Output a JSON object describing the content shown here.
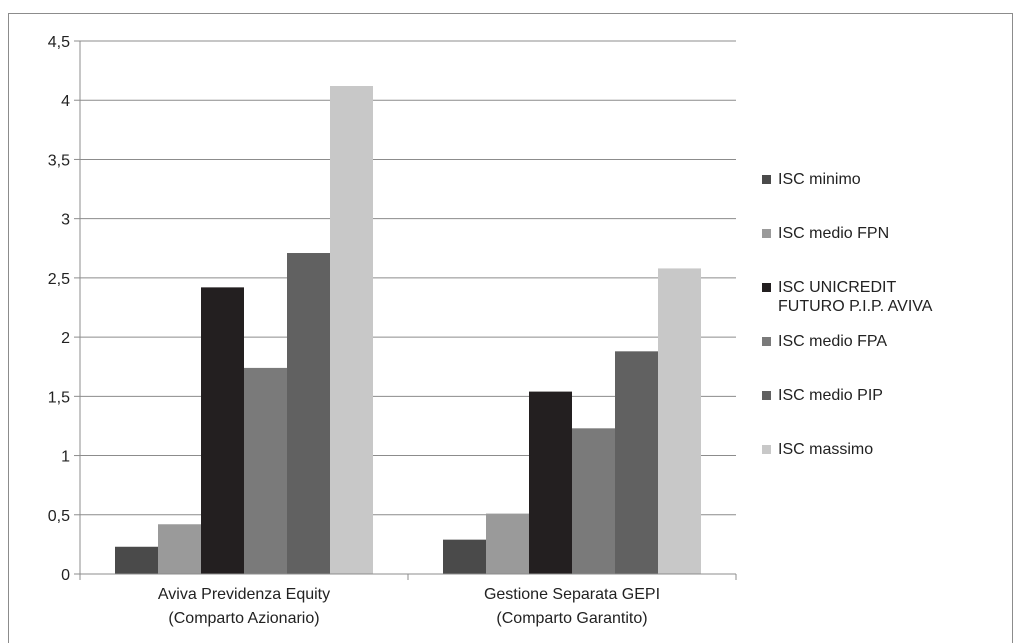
{
  "chart_data": {
    "type": "bar",
    "title": "",
    "xlabel": "",
    "ylabel": "",
    "ylim": [
      0,
      4.5
    ],
    "yticks": [
      "0",
      "0,5",
      "1",
      "1,5",
      "2",
      "2,5",
      "3",
      "3,5",
      "4",
      "4,5"
    ],
    "ytick_values": [
      0,
      0.5,
      1,
      1.5,
      2,
      2.5,
      3,
      3.5,
      4,
      4.5
    ],
    "grid": true,
    "legend_position": "right",
    "categories": [
      [
        "Aviva Previdenza Equity",
        "(Comparto Azionario)"
      ],
      [
        "Gestione Separata GEPI",
        "(Comparto Garantito)"
      ]
    ],
    "series": [
      {
        "name": "ISC minimo",
        "color": "#4a4a4a",
        "values": [
          0.23,
          0.29
        ]
      },
      {
        "name": "ISC medio FPN",
        "color": "#9a9a9a",
        "values": [
          0.42,
          0.51
        ]
      },
      {
        "name": "ISC UNICREDIT\nFUTURO P.I.P. AVIVA",
        "color": "#231f20",
        "values": [
          2.42,
          1.54
        ]
      },
      {
        "name": "ISC medio FPA",
        "color": "#7a7a7a",
        "values": [
          1.74,
          1.23
        ]
      },
      {
        "name": "ISC medio PIP",
        "color": "#616161",
        "values": [
          2.71,
          1.88
        ]
      },
      {
        "name": "ISC massimo",
        "color": "#c8c8c8",
        "values": [
          4.12,
          2.58
        ]
      }
    ]
  }
}
